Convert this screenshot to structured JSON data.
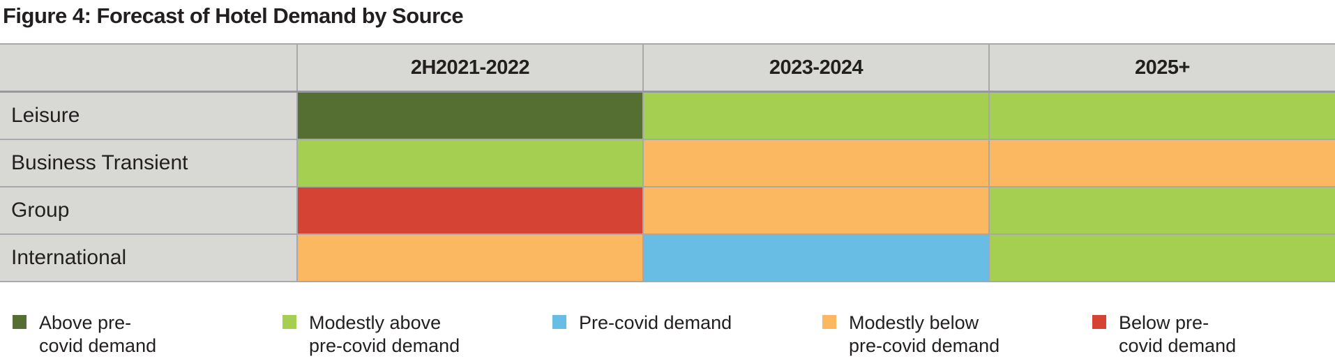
{
  "title": "Figure 4: Forecast of Hotel Demand by Source",
  "colors": {
    "above_pre_covid": "#556E31",
    "modestly_above": "#A5CF50",
    "pre_covid": "#68BDE4",
    "modestly_below": "#FBB861",
    "below_pre_covid": "#D44333",
    "cell_gray": "#D8D9D5",
    "border_gray": "#A6A8AB",
    "text": "#231F20"
  },
  "chart_data": {
    "type": "heatmap",
    "title": "Figure 4: Forecast of Hotel Demand by Source",
    "columns": [
      "2H2021-2022",
      "2023-2024",
      "2025+"
    ],
    "rows": [
      "Leisure",
      "Business Transient",
      "Group",
      "International"
    ],
    "values": [
      [
        "above_pre_covid",
        "modestly_above",
        "modestly_above"
      ],
      [
        "modestly_above",
        "modestly_below",
        "modestly_below"
      ],
      [
        "below_pre_covid",
        "modestly_below",
        "modestly_above"
      ],
      [
        "modestly_below",
        "pre_covid",
        "modestly_above"
      ]
    ],
    "value_labels": {
      "above_pre_covid": "Above pre-covid demand",
      "modestly_above": "Modestly above pre-covid demand",
      "pre_covid": "Pre-covid demand",
      "modestly_below": "Modestly below pre-covid demand",
      "below_pre_covid": "Below pre-covid demand"
    },
    "legend_position": "bottom",
    "grid": true
  },
  "legend": {
    "items": [
      {
        "color_key": "above_pre_covid",
        "lines": [
          "Above pre-",
          "covid demand"
        ]
      },
      {
        "color_key": "modestly_above",
        "lines": [
          "Modestly above",
          "pre-covid demand"
        ]
      },
      {
        "color_key": "pre_covid",
        "lines": [
          "Pre-covid demand"
        ]
      },
      {
        "color_key": "modestly_below",
        "lines": [
          "Modestly below",
          "pre-covid demand"
        ]
      },
      {
        "color_key": "below_pre_covid",
        "lines": [
          "Below pre-",
          "covid demand"
        ]
      }
    ]
  }
}
